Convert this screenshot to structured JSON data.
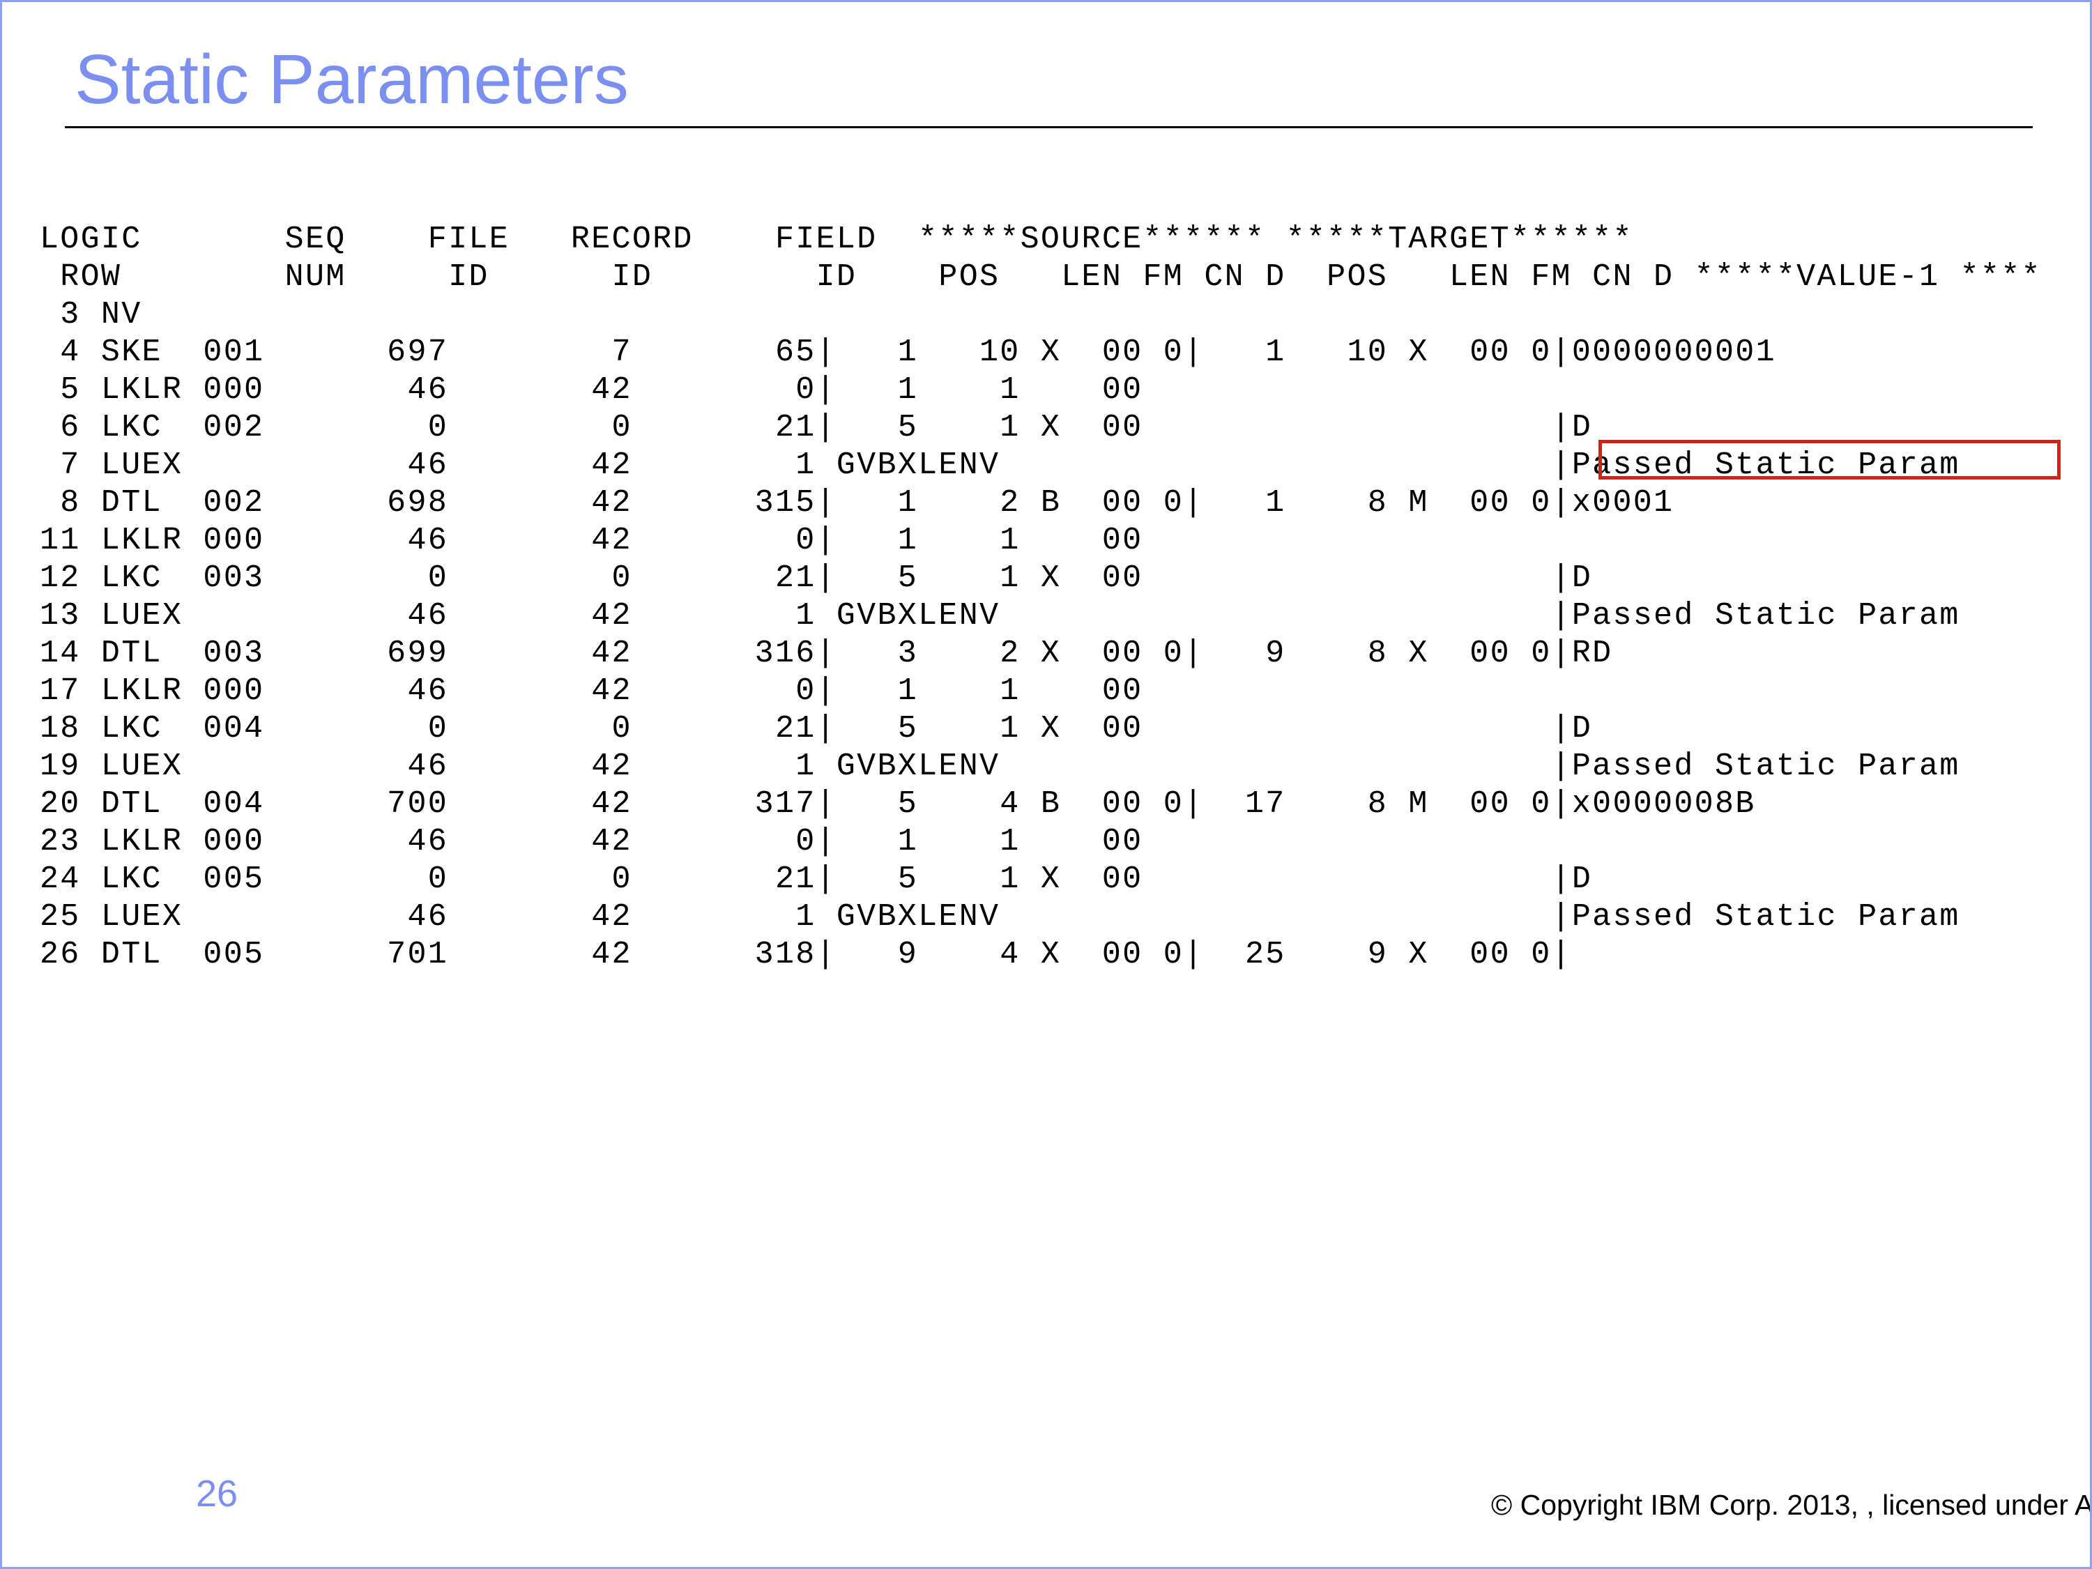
{
  "slide": {
    "title": "Static Parameters",
    "page_number": "26",
    "copyright": "© Copyright IBM Corp. 2013, , licensed under A"
  },
  "listing": {
    "header_1": "LOGIC       SEQ    FILE   RECORD    FIELD  *****SOURCE****** *****TARGET******",
    "header_2": " ROW        NUM     ID      ID        ID    POS   LEN FM CN D  POS   LEN FM CN D *****VALUE-1 ****",
    "rows": [
      " 3 NV",
      " 4 SKE  001      697        7       65|   1   10 X  00 0|   1   10 X  00 0|0000000001",
      " 5 LKLR 000       46       42        0|   1    1    00",
      " 6 LKC  002        0        0       21|   5    1 X  00                    |D",
      " 7 LUEX           46       42        1 GVBXLENV                           |Passed Static Param",
      " 8 DTL  002      698       42      315|   1    2 B  00 0|   1    8 M  00 0|x0001",
      "11 LKLR 000       46       42        0|   1    1    00",
      "12 LKC  003        0        0       21|   5    1 X  00                    |D",
      "13 LUEX           46       42        1 GVBXLENV                           |Passed Static Param",
      "14 DTL  003      699       42      316|   3    2 X  00 0|   9    8 X  00 0|RD",
      "17 LKLR 000       46       42        0|   1    1    00",
      "18 LKC  004        0        0       21|   5    1 X  00                    |D",
      "19 LUEX           46       42        1 GVBXLENV                           |Passed Static Param",
      "20 DTL  004      700       42      317|   5    4 B  00 0|  17    8 M  00 0|x0000008B",
      "23 LKLR 000       46       42        0|   1    1    00",
      "24 LKC  005        0        0       21|   5    1 X  00                    |D",
      "25 LUEX           46       42        1 GVBXLENV                           |Passed Static Param",
      "26 DTL  005      701       42      318|   9    4 X  00 0|  25    9 X  00 0|"
    ]
  },
  "colors": {
    "title": "#7b8ff0",
    "border": "#8ea1f0",
    "highlight": "#e01b1b"
  }
}
